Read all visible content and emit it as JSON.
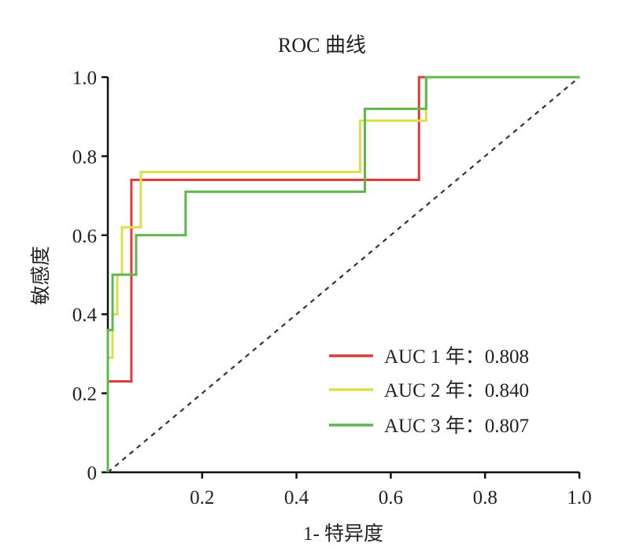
{
  "chart_data": {
    "type": "line",
    "title": "ROC 曲线",
    "xlabel": "1- 特异度",
    "ylabel": "敏感度",
    "xlim": [
      0,
      1
    ],
    "ylim": [
      0,
      1
    ],
    "xticks": [
      0.2,
      0.4,
      0.6,
      0.8,
      1.0
    ],
    "xtick_labels": [
      "0.2",
      "0.4",
      "0.6",
      "0.8",
      "1.0"
    ],
    "yticks": [
      0,
      0.2,
      0.4,
      0.6,
      0.8,
      1.0
    ],
    "ytick_labels": [
      "0",
      "0.2",
      "0.4",
      "0.6",
      "0.8",
      "1.0"
    ],
    "reference_line": {
      "style": "dashed",
      "color": "#333333",
      "x": [
        0,
        1
      ],
      "y": [
        0,
        1
      ]
    },
    "legend_position": "bottom-right",
    "series": [
      {
        "name": "AUC 1 年：0.808",
        "color": "#e03a3a",
        "x": [
          0,
          0,
          0.05,
          0.05,
          0.66,
          0.66,
          1.0
        ],
        "y": [
          0,
          0.23,
          0.23,
          0.74,
          0.74,
          1.0,
          1.0
        ]
      },
      {
        "name": "AUC 2 年：0.840",
        "color": "#dede4a",
        "x": [
          0,
          0,
          0.01,
          0.01,
          0.02,
          0.02,
          0.03,
          0.03,
          0.07,
          0.07,
          0.535,
          0.535,
          0.675,
          0.675,
          1.0
        ],
        "y": [
          0,
          0.29,
          0.29,
          0.4,
          0.4,
          0.5,
          0.5,
          0.62,
          0.62,
          0.76,
          0.76,
          0.89,
          0.89,
          1.0,
          1.0
        ]
      },
      {
        "name": "AUC 3 年：0.807",
        "color": "#5cb848",
        "x": [
          0,
          0,
          0.01,
          0.01,
          0.02,
          0.02,
          0.06,
          0.06,
          0.165,
          0.165,
          0.545,
          0.545,
          0.675,
          0.675,
          1.0
        ],
        "y": [
          0,
          0.36,
          0.36,
          0.5,
          0.5,
          0.5,
          0.5,
          0.6,
          0.6,
          0.71,
          0.71,
          0.92,
          0.92,
          1.0,
          1.0
        ]
      }
    ]
  }
}
